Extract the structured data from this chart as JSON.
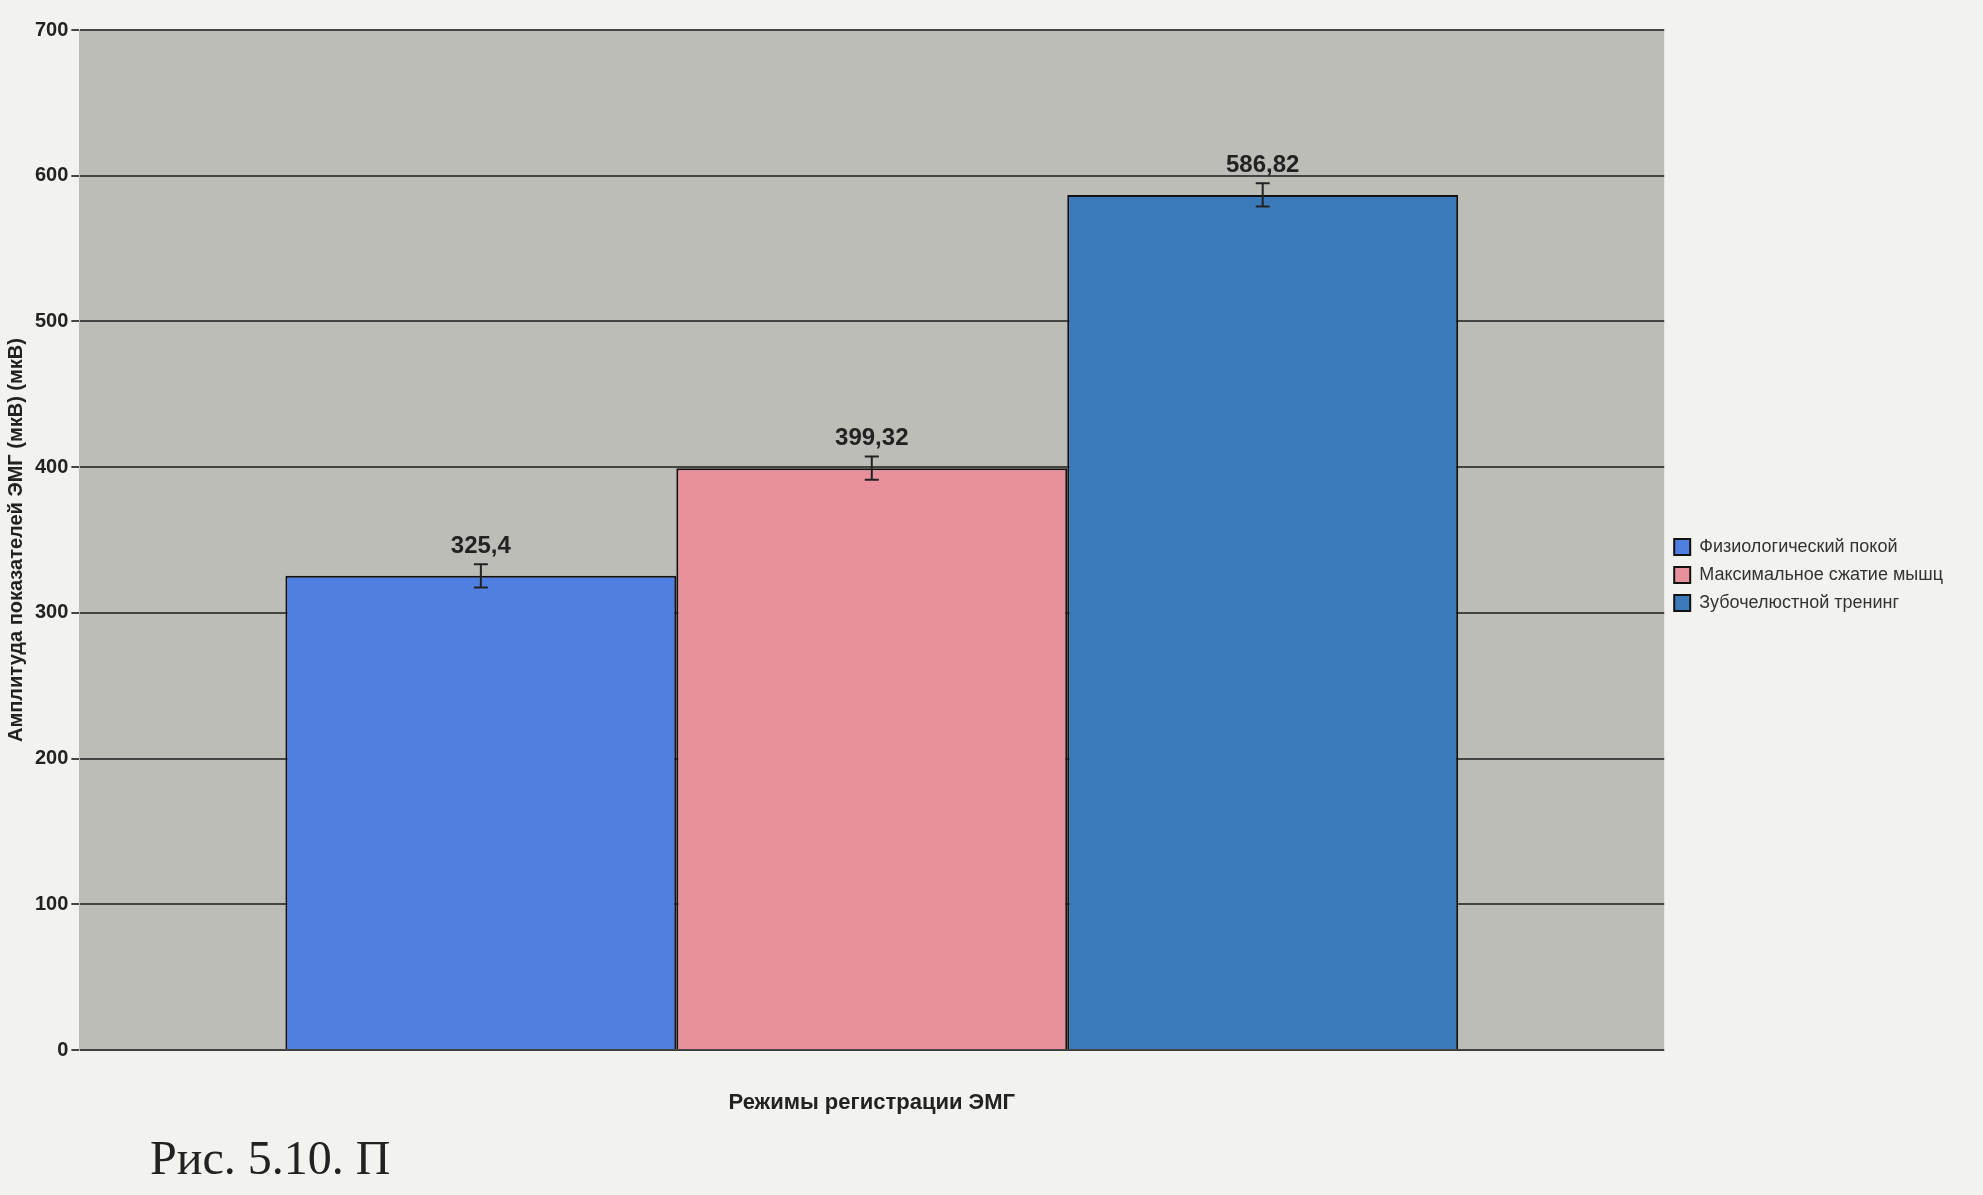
{
  "chart_data": {
    "type": "bar",
    "xlabel": "Режимы регистрации ЭМГ",
    "ylabel": "Амплитуда показателей ЭМГ (мкВ) (мкВ)",
    "categories": [
      null
    ],
    "series": [
      {
        "name": "Физиологический покой",
        "color": "#4f7fe0",
        "values": [
          325.4
        ],
        "errors": [
          8
        ],
        "value_labels": [
          "325,4"
        ]
      },
      {
        "name": "Максимальное сжатие мышц",
        "color": "#e8909c",
        "values": [
          399.32
        ],
        "errors": [
          8
        ],
        "value_labels": [
          "399,32"
        ]
      },
      {
        "name": "Зубочелюстной тренинг",
        "color": "#3a7ab8",
        "values": [
          586.82
        ],
        "errors": [
          8
        ],
        "value_labels": [
          "586,82"
        ]
      }
    ],
    "ylim": [
      0,
      700
    ],
    "yticks": [
      0,
      100,
      200,
      300,
      400,
      500,
      600,
      700
    ],
    "grid": "y",
    "legend": "right",
    "annotations": [
      "Рис. 5.10. П"
    ]
  }
}
